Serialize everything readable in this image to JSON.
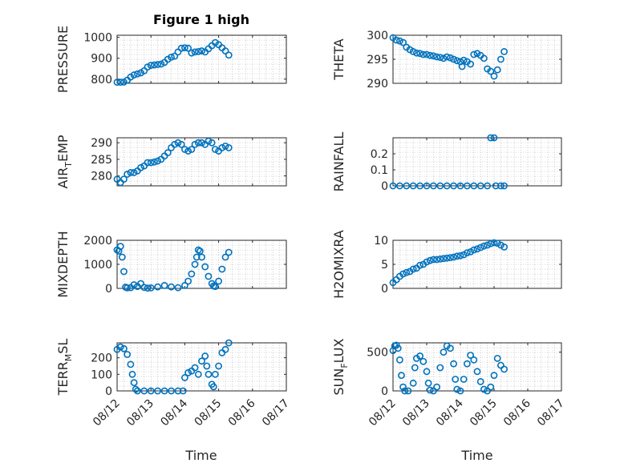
{
  "figure": {
    "title": "Figure 1 high",
    "xlabel": "Time"
  },
  "colors": {
    "marker": "#0072BD",
    "axis": "#262626",
    "grid": "#b0b0b0"
  },
  "chart_data": [
    {
      "type": "scatter",
      "ylabel": "PRESSURE",
      "ylabel_sub": "",
      "ylabel_tail": "",
      "yticks": [
        "800",
        "900",
        "1000"
      ],
      "ylim": [
        780,
        1010
      ],
      "ytick_values": [
        800,
        900,
        1000
      ],
      "xlim": [
        0,
        5
      ],
      "points": [
        [
          0.0,
          785
        ],
        [
          0.1,
          785
        ],
        [
          0.2,
          786
        ],
        [
          0.3,
          795
        ],
        [
          0.4,
          810
        ],
        [
          0.5,
          820
        ],
        [
          0.6,
          825
        ],
        [
          0.7,
          830
        ],
        [
          0.8,
          840
        ],
        [
          0.9,
          858
        ],
        [
          1.0,
          866
        ],
        [
          1.1,
          868
        ],
        [
          1.2,
          870
        ],
        [
          1.3,
          872
        ],
        [
          1.4,
          880
        ],
        [
          1.5,
          895
        ],
        [
          1.6,
          905
        ],
        [
          1.7,
          910
        ],
        [
          1.8,
          930
        ],
        [
          1.9,
          948
        ],
        [
          2.0,
          950
        ],
        [
          2.1,
          948
        ],
        [
          2.2,
          925
        ],
        [
          2.3,
          930
        ],
        [
          2.4,
          932
        ],
        [
          2.5,
          935
        ],
        [
          2.6,
          930
        ],
        [
          2.7,
          945
        ],
        [
          2.8,
          960
        ],
        [
          2.9,
          975
        ],
        [
          3.0,
          965
        ],
        [
          3.1,
          950
        ],
        [
          3.2,
          935
        ],
        [
          3.3,
          915
        ]
      ]
    },
    {
      "type": "scatter",
      "ylabel": "THETA",
      "ylabel_sub": "",
      "ylabel_tail": "",
      "yticks": [
        "290",
        "295",
        "300"
      ],
      "ylim": [
        290,
        300
      ],
      "ytick_values": [
        290,
        295,
        300
      ],
      "xlim": [
        0,
        5
      ],
      "points": [
        [
          0.0,
          299.5
        ],
        [
          0.1,
          299
        ],
        [
          0.2,
          298.8
        ],
        [
          0.3,
          298.5
        ],
        [
          0.4,
          297.5
        ],
        [
          0.5,
          297
        ],
        [
          0.6,
          296.6
        ],
        [
          0.7,
          296.3
        ],
        [
          0.8,
          296.2
        ],
        [
          0.9,
          296
        ],
        [
          1.0,
          296
        ],
        [
          1.1,
          295.8
        ],
        [
          1.2,
          295.7
        ],
        [
          1.3,
          295.5
        ],
        [
          1.4,
          295.4
        ],
        [
          1.5,
          295.2
        ],
        [
          1.6,
          295.5
        ],
        [
          1.7,
          295.3
        ],
        [
          1.8,
          295
        ],
        [
          1.9,
          294.7
        ],
        [
          2.0,
          294.5
        ],
        [
          2.05,
          293.5
        ],
        [
          2.1,
          294.8
        ],
        [
          2.2,
          294.5
        ],
        [
          2.3,
          294
        ],
        [
          2.4,
          296
        ],
        [
          2.5,
          296.2
        ],
        [
          2.6,
          295.8
        ],
        [
          2.7,
          295.2
        ],
        [
          2.8,
          293
        ],
        [
          2.9,
          292.5
        ],
        [
          3.0,
          291.5
        ],
        [
          3.1,
          292.8
        ],
        [
          3.2,
          295
        ],
        [
          3.3,
          296.6
        ]
      ]
    },
    {
      "type": "scatter",
      "ylabel": "AIR",
      "ylabel_sub": "T",
      "ylabel_tail": "EMP",
      "yticks": [
        "280",
        "285",
        "290"
      ],
      "ylim": [
        277,
        291.5
      ],
      "ytick_values": [
        280,
        285,
        290
      ],
      "xlim": [
        0,
        5
      ],
      "points": [
        [
          0.0,
          279
        ],
        [
          0.1,
          278
        ],
        [
          0.2,
          279
        ],
        [
          0.3,
          280.5
        ],
        [
          0.4,
          281
        ],
        [
          0.5,
          281
        ],
        [
          0.6,
          281.5
        ],
        [
          0.7,
          282.5
        ],
        [
          0.8,
          283
        ],
        [
          0.9,
          284
        ],
        [
          1.0,
          284
        ],
        [
          1.1,
          284.2
        ],
        [
          1.2,
          284.5
        ],
        [
          1.3,
          285
        ],
        [
          1.4,
          286
        ],
        [
          1.5,
          287
        ],
        [
          1.6,
          288.5
        ],
        [
          1.7,
          289.5
        ],
        [
          1.8,
          290
        ],
        [
          1.9,
          289.5
        ],
        [
          2.0,
          288
        ],
        [
          2.1,
          287.5
        ],
        [
          2.2,
          288
        ],
        [
          2.3,
          289.5
        ],
        [
          2.4,
          290
        ],
        [
          2.5,
          290
        ],
        [
          2.6,
          289.5
        ],
        [
          2.7,
          290.5
        ],
        [
          2.8,
          290
        ],
        [
          2.9,
          288
        ],
        [
          3.0,
          287.5
        ],
        [
          3.1,
          288.5
        ],
        [
          3.2,
          289
        ],
        [
          3.3,
          288.5
        ]
      ]
    },
    {
      "type": "scatter",
      "ylabel": "RAINFALL",
      "ylabel_sub": "",
      "ylabel_tail": "",
      "yticks": [
        "0",
        "0.1",
        "0.2"
      ],
      "ylim": [
        0,
        0.3
      ],
      "ytick_values": [
        0,
        0.1,
        0.2
      ],
      "xlim": [
        0,
        5
      ],
      "points": [
        [
          0.0,
          0
        ],
        [
          0.2,
          0
        ],
        [
          0.4,
          0
        ],
        [
          0.6,
          0
        ],
        [
          0.8,
          0
        ],
        [
          1.0,
          0
        ],
        [
          1.2,
          0
        ],
        [
          1.4,
          0
        ],
        [
          1.6,
          0
        ],
        [
          1.8,
          0
        ],
        [
          2.0,
          0
        ],
        [
          2.2,
          0
        ],
        [
          2.4,
          0
        ],
        [
          2.6,
          0
        ],
        [
          2.8,
          0
        ],
        [
          2.9,
          0.3
        ],
        [
          3.0,
          0.3
        ],
        [
          3.05,
          0
        ],
        [
          3.2,
          0
        ],
        [
          3.3,
          0
        ]
      ]
    },
    {
      "type": "scatter",
      "ylabel": "MIXDEPTH",
      "ylabel_sub": "",
      "ylabel_tail": "",
      "yticks": [
        "0",
        "1000",
        "2000"
      ],
      "ylim": [
        0,
        2000
      ],
      "ytick_values": [
        0,
        1000,
        2000
      ],
      "xlim": [
        0,
        5
      ],
      "points": [
        [
          0.0,
          1600
        ],
        [
          0.05,
          1550
        ],
        [
          0.1,
          1750
        ],
        [
          0.15,
          1300
        ],
        [
          0.2,
          700
        ],
        [
          0.25,
          50
        ],
        [
          0.3,
          20
        ],
        [
          0.4,
          30
        ],
        [
          0.5,
          150
        ],
        [
          0.6,
          80
        ],
        [
          0.7,
          200
        ],
        [
          0.8,
          40
        ],
        [
          0.9,
          10
        ],
        [
          1.0,
          20
        ],
        [
          1.2,
          60
        ],
        [
          1.4,
          120
        ],
        [
          1.6,
          60
        ],
        [
          1.8,
          30
        ],
        [
          2.0,
          120
        ],
        [
          2.1,
          300
        ],
        [
          2.2,
          600
        ],
        [
          2.3,
          1000
        ],
        [
          2.35,
          1300
        ],
        [
          2.4,
          1600
        ],
        [
          2.45,
          1550
        ],
        [
          2.5,
          1300
        ],
        [
          2.6,
          900
        ],
        [
          2.7,
          500
        ],
        [
          2.8,
          200
        ],
        [
          2.85,
          100
        ],
        [
          2.9,
          80
        ],
        [
          3.0,
          300
        ],
        [
          3.1,
          800
        ],
        [
          3.2,
          1300
        ],
        [
          3.3,
          1500
        ]
      ]
    },
    {
      "type": "scatter",
      "ylabel": "H2OMIXRA",
      "ylabel_sub": "",
      "ylabel_tail": "",
      "yticks": [
        "0",
        "5",
        "10"
      ],
      "ylim": [
        0,
        10
      ],
      "ytick_values": [
        0,
        5,
        10
      ],
      "xlim": [
        0,
        5
      ],
      "points": [
        [
          0.0,
          1.2
        ],
        [
          0.1,
          1.8
        ],
        [
          0.2,
          2.5
        ],
        [
          0.3,
          3
        ],
        [
          0.4,
          3.3
        ],
        [
          0.5,
          3.5
        ],
        [
          0.6,
          4
        ],
        [
          0.7,
          4.2
        ],
        [
          0.8,
          4.8
        ],
        [
          0.9,
          5
        ],
        [
          1.0,
          5.5
        ],
        [
          1.1,
          5.8
        ],
        [
          1.2,
          6
        ],
        [
          1.3,
          6
        ],
        [
          1.4,
          6.1
        ],
        [
          1.5,
          6.2
        ],
        [
          1.6,
          6.3
        ],
        [
          1.7,
          6.4
        ],
        [
          1.8,
          6.5
        ],
        [
          1.9,
          6.7
        ],
        [
          2.0,
          6.8
        ],
        [
          2.1,
          7
        ],
        [
          2.2,
          7.4
        ],
        [
          2.3,
          7.6
        ],
        [
          2.4,
          8
        ],
        [
          2.5,
          8.2
        ],
        [
          2.6,
          8.5
        ],
        [
          2.7,
          8.8
        ],
        [
          2.8,
          9
        ],
        [
          2.9,
          9.3
        ],
        [
          3.0,
          9.5
        ],
        [
          3.1,
          9.4
        ],
        [
          3.2,
          9
        ],
        [
          3.3,
          8.6
        ]
      ]
    },
    {
      "type": "scatter",
      "ylabel": "TERR",
      "ylabel_sub": "M",
      "ylabel_tail": "SL",
      "yticks": [
        "0",
        "100",
        "200"
      ],
      "ylim": [
        0,
        290
      ],
      "ytick_values": [
        0,
        100,
        200
      ],
      "xlim": [
        0,
        5
      ],
      "points": [
        [
          0.0,
          250
        ],
        [
          0.1,
          265
        ],
        [
          0.2,
          255
        ],
        [
          0.3,
          220
        ],
        [
          0.4,
          160
        ],
        [
          0.45,
          100
        ],
        [
          0.5,
          50
        ],
        [
          0.55,
          10
        ],
        [
          0.6,
          0
        ],
        [
          0.8,
          0
        ],
        [
          1.0,
          0
        ],
        [
          1.2,
          0
        ],
        [
          1.4,
          0
        ],
        [
          1.6,
          0
        ],
        [
          1.8,
          0
        ],
        [
          1.95,
          0
        ],
        [
          2.0,
          80
        ],
        [
          2.1,
          110
        ],
        [
          2.2,
          120
        ],
        [
          2.3,
          140
        ],
        [
          2.4,
          100
        ],
        [
          2.5,
          180
        ],
        [
          2.6,
          210
        ],
        [
          2.65,
          150
        ],
        [
          2.7,
          100
        ],
        [
          2.8,
          40
        ],
        [
          2.85,
          25
        ],
        [
          2.9,
          100
        ],
        [
          3.0,
          150
        ],
        [
          3.1,
          230
        ],
        [
          3.2,
          250
        ],
        [
          3.3,
          290
        ]
      ]
    },
    {
      "type": "scatter",
      "ylabel": "SUN",
      "ylabel_sub": "F",
      "ylabel_tail": "LUX",
      "yticks": [
        "0",
        "500"
      ],
      "ylim": [
        0,
        620
      ],
      "ytick_values": [
        0,
        500
      ],
      "xlim": [
        0,
        5
      ],
      "points": [
        [
          0.0,
          520
        ],
        [
          0.05,
          580
        ],
        [
          0.1,
          590
        ],
        [
          0.15,
          550
        ],
        [
          0.2,
          400
        ],
        [
          0.25,
          200
        ],
        [
          0.3,
          50
        ],
        [
          0.35,
          0
        ],
        [
          0.45,
          0
        ],
        [
          0.6,
          100
        ],
        [
          0.65,
          300
        ],
        [
          0.7,
          420
        ],
        [
          0.8,
          450
        ],
        [
          0.9,
          380
        ],
        [
          1.0,
          250
        ],
        [
          1.05,
          100
        ],
        [
          1.1,
          10
        ],
        [
          1.2,
          0
        ],
        [
          1.3,
          50
        ],
        [
          1.4,
          300
        ],
        [
          1.5,
          500
        ],
        [
          1.6,
          580
        ],
        [
          1.7,
          550
        ],
        [
          1.8,
          350
        ],
        [
          1.85,
          150
        ],
        [
          1.9,
          20
        ],
        [
          2.0,
          0
        ],
        [
          2.1,
          150
        ],
        [
          2.2,
          350
        ],
        [
          2.3,
          460
        ],
        [
          2.4,
          400
        ],
        [
          2.5,
          250
        ],
        [
          2.6,
          120
        ],
        [
          2.7,
          20
        ],
        [
          2.8,
          0
        ],
        [
          2.9,
          50
        ],
        [
          3.0,
          200
        ],
        [
          3.1,
          420
        ],
        [
          3.2,
          330
        ],
        [
          3.3,
          280
        ]
      ]
    }
  ],
  "xticks": [
    "08/12",
    "08/13",
    "08/14",
    "08/15",
    "08/16",
    "08/17"
  ]
}
